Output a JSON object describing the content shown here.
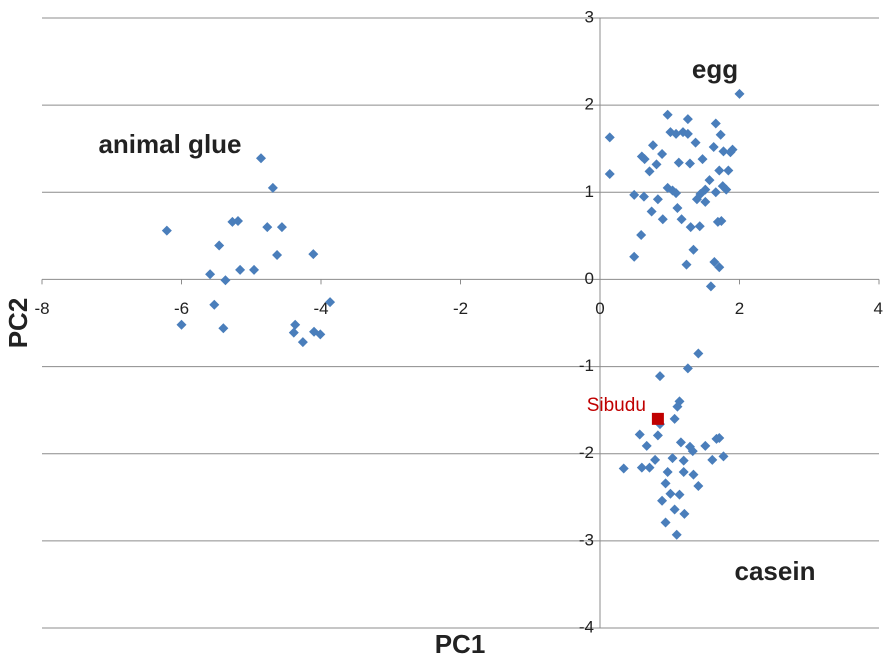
{
  "chart_data": {
    "type": "scatter",
    "x_label": "PC1",
    "y_label": "PC2",
    "xlim": [
      -8,
      4
    ],
    "ylim": [
      -4,
      3
    ],
    "xticks": [
      -8,
      -6,
      -4,
      -2,
      0,
      2,
      4
    ],
    "yticks": [
      -4,
      -3,
      -2,
      -1,
      0,
      1,
      2,
      3
    ],
    "grid": true,
    "annotations": [
      "animal glue",
      "egg",
      "casein"
    ],
    "series": [
      {
        "color": "#4a7ebb",
        "marker": "diamond",
        "x": [
          -6.21,
          -4.86,
          -4.69,
          -5.27,
          -5.19,
          -4.77,
          -4.56,
          -5.46,
          -4.63,
          -4.11,
          -5.16,
          -4.96,
          -5.59,
          -5.37,
          -5.53,
          -3.87,
          -6.0,
          -5.4,
          -4.37,
          -4.39,
          -4.1,
          -4.01,
          -4.26,
          0.76,
          0.6,
          0.64,
          0.81,
          1.01,
          1.09,
          1.19,
          1.26,
          0.89,
          1.13,
          1.29,
          1.66,
          1.73,
          1.37,
          1.63,
          1.77,
          1.47,
          1.9,
          1.87,
          1.84,
          1.71,
          0.71,
          0.97,
          1.04,
          1.09,
          1.11,
          1.57,
          1.51,
          1.44,
          1.51,
          1.66,
          1.76,
          1.81,
          1.74,
          1.69,
          1.39,
          1.17,
          0.9,
          0.49,
          0.63,
          0.83,
          0.74,
          1.3,
          1.43,
          1.34,
          0.59,
          0.49,
          1.24,
          1.64,
          1.71,
          1.59,
          2.0,
          0.14,
          0.14,
          0.97,
          1.26,
          1.41,
          0.86,
          1.26,
          1.14,
          1.11,
          1.07,
          0.86,
          0.83,
          0.57,
          0.67,
          0.79,
          1.04,
          0.34,
          0.71,
          0.6,
          1.16,
          1.29,
          1.33,
          1.2,
          1.2,
          1.34,
          1.51,
          1.67,
          1.71,
          1.77,
          0.97,
          0.94,
          1.01,
          1.07,
          0.94,
          1.14,
          1.21,
          1.41,
          0.89,
          1.1,
          1.61
        ],
        "values": [
          0.56,
          1.39,
          1.05,
          0.66,
          0.67,
          0.6,
          0.6,
          0.39,
          0.28,
          0.29,
          0.11,
          0.11,
          0.06,
          -0.01,
          -0.29,
          -0.26,
          -0.52,
          -0.56,
          -0.52,
          -0.61,
          -0.6,
          -0.63,
          -0.72,
          1.54,
          1.41,
          1.38,
          1.32,
          1.69,
          1.67,
          1.69,
          1.67,
          1.44,
          1.34,
          1.33,
          1.79,
          1.66,
          1.57,
          1.52,
          1.47,
          1.38,
          1.49,
          1.46,
          1.25,
          1.25,
          1.24,
          1.05,
          1.02,
          0.99,
          0.82,
          1.14,
          1.03,
          0.98,
          0.89,
          1.0,
          1.07,
          1.03,
          0.67,
          0.66,
          0.92,
          0.69,
          0.69,
          0.97,
          0.95,
          0.92,
          0.78,
          0.6,
          0.61,
          0.34,
          0.51,
          0.26,
          0.17,
          0.2,
          0.14,
          -0.08,
          2.13,
          1.63,
          1.21,
          1.89,
          1.84,
          -0.85,
          -1.11,
          -1.02,
          -1.4,
          -1.46,
          -1.6,
          -1.66,
          -1.79,
          -1.78,
          -1.91,
          -2.07,
          -2.05,
          -2.17,
          -2.16,
          -2.16,
          -1.87,
          -1.92,
          -1.97,
          -2.08,
          -2.21,
          -2.24,
          -1.91,
          -1.83,
          -1.82,
          -2.03,
          -2.21,
          -2.34,
          -2.46,
          -2.64,
          -2.79,
          -2.47,
          -2.69,
          -2.37,
          -2.54,
          -2.93,
          -2.07
        ]
      },
      {
        "name": "Sibudu",
        "color": "#c00000",
        "marker": "square",
        "x": [
          0.83
        ],
        "values": [
          -1.6
        ]
      }
    ]
  }
}
